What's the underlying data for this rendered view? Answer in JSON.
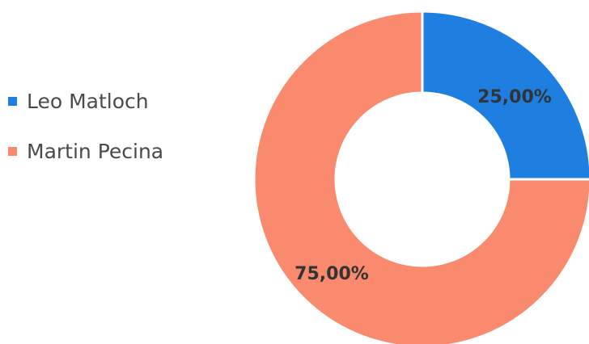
{
  "chart_data": {
    "type": "pie",
    "title": "",
    "categories": [
      "Leo Matloch",
      "Martin Pecina"
    ],
    "values": [
      25,
      75
    ],
    "data_labels": [
      "25,00%",
      "75,00%"
    ],
    "colors": [
      "#1f7fe0",
      "#fa8a6e"
    ],
    "legend": "left",
    "style": "donut"
  }
}
